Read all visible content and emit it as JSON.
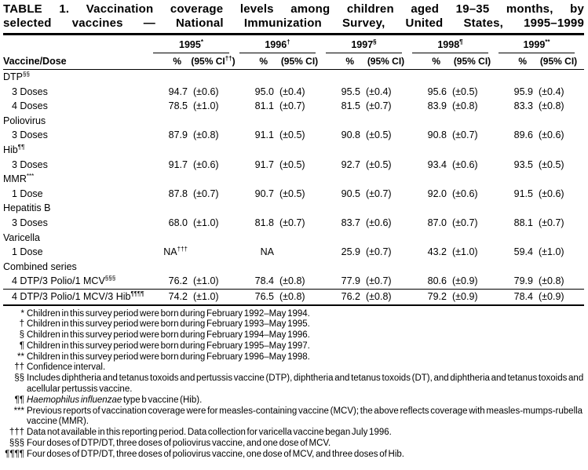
{
  "title_lines": [
    "TABLE 1. Vaccination coverage levels among children aged 19–35 months, by",
    "selected vaccines — National Immunization Survey, United States, 1995–1999"
  ],
  "header": {
    "row_label": "Vaccine/Dose",
    "pct_label": "%",
    "ci_prefix": "(95% CI",
    "ci_suffix": ")",
    "years": [
      {
        "label": "1995",
        "marker": "*",
        "ci_sup": "††"
      },
      {
        "label": "1996",
        "marker": "†",
        "ci_sup": ""
      },
      {
        "label": "1997",
        "marker": "§",
        "ci_sup": ""
      },
      {
        "label": "1998",
        "marker": "¶",
        "ci_sup": ""
      },
      {
        "label": "1999",
        "marker": "**",
        "ci_sup": ""
      }
    ]
  },
  "rows": [
    {
      "type": "section",
      "label": "DTP",
      "marker": "§§"
    },
    {
      "type": "data",
      "label": "3 Doses",
      "marker": "",
      "cells": [
        [
          "94.7",
          "(±0.6)"
        ],
        [
          "95.0",
          "(±0.4)"
        ],
        [
          "95.5",
          "(±0.4)"
        ],
        [
          "95.6",
          "(±0.5)"
        ],
        [
          "95.9",
          "(±0.4)"
        ]
      ]
    },
    {
      "type": "data",
      "label": "4 Doses",
      "marker": "",
      "cells": [
        [
          "78.5",
          "(±1.0)"
        ],
        [
          "81.1",
          "(±0.7)"
        ],
        [
          "81.5",
          "(±0.7)"
        ],
        [
          "83.9",
          "(±0.8)"
        ],
        [
          "83.3",
          "(±0.8)"
        ]
      ]
    },
    {
      "type": "section",
      "label": "Poliovirus",
      "marker": ""
    },
    {
      "type": "data",
      "label": "3 Doses",
      "marker": "",
      "cells": [
        [
          "87.9",
          "(±0.8)"
        ],
        [
          "91.1",
          "(±0.5)"
        ],
        [
          "90.8",
          "(±0.5)"
        ],
        [
          "90.8",
          "(±0.7)"
        ],
        [
          "89.6",
          "(±0.6)"
        ]
      ]
    },
    {
      "type": "section",
      "label": "Hib",
      "marker": "¶¶"
    },
    {
      "type": "data",
      "label": "3 Doses",
      "marker": "",
      "cells": [
        [
          "91.7",
          "(±0.6)"
        ],
        [
          "91.7",
          "(±0.5)"
        ],
        [
          "92.7",
          "(±0.5)"
        ],
        [
          "93.4",
          "(±0.6)"
        ],
        [
          "93.5",
          "(±0.5)"
        ]
      ]
    },
    {
      "type": "section",
      "label": "MMR",
      "marker": "***"
    },
    {
      "type": "data",
      "label": "1 Dose",
      "marker": "",
      "cells": [
        [
          "87.8",
          "(±0.7)"
        ],
        [
          "90.7",
          "(±0.5)"
        ],
        [
          "90.5",
          "(±0.7)"
        ],
        [
          "92.0",
          "(±0.6)"
        ],
        [
          "91.5",
          "(±0.6)"
        ]
      ]
    },
    {
      "type": "section",
      "label": "Hepatitis B",
      "marker": ""
    },
    {
      "type": "data",
      "label": "3 Doses",
      "marker": "",
      "cells": [
        [
          "68.0",
          "(±1.0)"
        ],
        [
          "81.8",
          "(±0.7)"
        ],
        [
          "83.7",
          "(±0.6)"
        ],
        [
          "87.0",
          "(±0.7)"
        ],
        [
          "88.1",
          "(±0.7)"
        ]
      ]
    },
    {
      "type": "section",
      "label": "Varicella",
      "marker": ""
    },
    {
      "type": "data",
      "label": "1 Dose",
      "marker": "",
      "cells": [
        [
          "NA",
          "",
          "†††"
        ],
        [
          "NA",
          ""
        ],
        [
          "25.9",
          "(±0.7)"
        ],
        [
          "43.2",
          "(±1.0)"
        ],
        [
          "59.4",
          "(±1.0)"
        ]
      ]
    },
    {
      "type": "section",
      "label": "Combined series",
      "marker": ""
    },
    {
      "type": "data",
      "label": "4 DTP/3 Polio/1 MCV",
      "marker": "§§§",
      "cells": [
        [
          "76.2",
          "(±1.0)"
        ],
        [
          "78.4",
          "(±0.8)"
        ],
        [
          "77.9",
          "(±0.7)"
        ],
        [
          "80.6",
          "(±0.9)"
        ],
        [
          "79.9",
          "(±0.8)"
        ]
      ]
    },
    {
      "type": "data",
      "label": "4 DTP/3 Polio/1 MCV/3 Hib",
      "marker": "¶¶¶¶",
      "rule_above": true,
      "cells": [
        [
          "74.2",
          "(±1.0)"
        ],
        [
          "76.5",
          "(±0.8)"
        ],
        [
          "76.2",
          "(±0.8)"
        ],
        [
          "79.2",
          "(±0.9)"
        ],
        [
          "78.4",
          "(±0.9)"
        ]
      ]
    }
  ],
  "footnotes": [
    {
      "marker": "*",
      "text": "Children in this survey period were born during February 1992–May 1994."
    },
    {
      "marker": "†",
      "text": "Children in this survey period were born during February 1993–May 1995."
    },
    {
      "marker": "§",
      "text": "Children in this survey period were born during February 1994–May 1996."
    },
    {
      "marker": "¶",
      "text": "Children in this survey period were born during February 1995–May 1997."
    },
    {
      "marker": "**",
      "text": "Children in this survey period were born during February 1996–May 1998."
    },
    {
      "marker": "††",
      "text": "Confidence interval."
    },
    {
      "marker": "§§",
      "text": "Includes diphtheria and tetanus toxoids and pertussis vaccine (DTP), diphtheria and tetanus toxoids (DT), and diphtheria and tetanus toxoids and acellular pertussis vaccine."
    },
    {
      "marker": "¶¶",
      "italic": "Haemophilus influenzae",
      "text": " type b vaccine (Hib)."
    },
    {
      "marker": "***",
      "text": "Previous reports of vaccination coverage were for measles-containing vaccine (MCV); the above reflects coverage with measles-mumps-rubella vaccine (MMR)."
    },
    {
      "marker": "†††",
      "text": "Data not available in this reporting period. Data collection for varicella vaccine began July 1996."
    },
    {
      "marker": "§§§",
      "text": "Four doses of DTP/DT, three doses of poliovirus vaccine, and one dose of MCV."
    },
    {
      "marker": "¶¶¶¶",
      "text": "Four doses of DTP/DT, three doses of poliovirus vaccine, one dose of MCV, and three doses of Hib."
    }
  ]
}
